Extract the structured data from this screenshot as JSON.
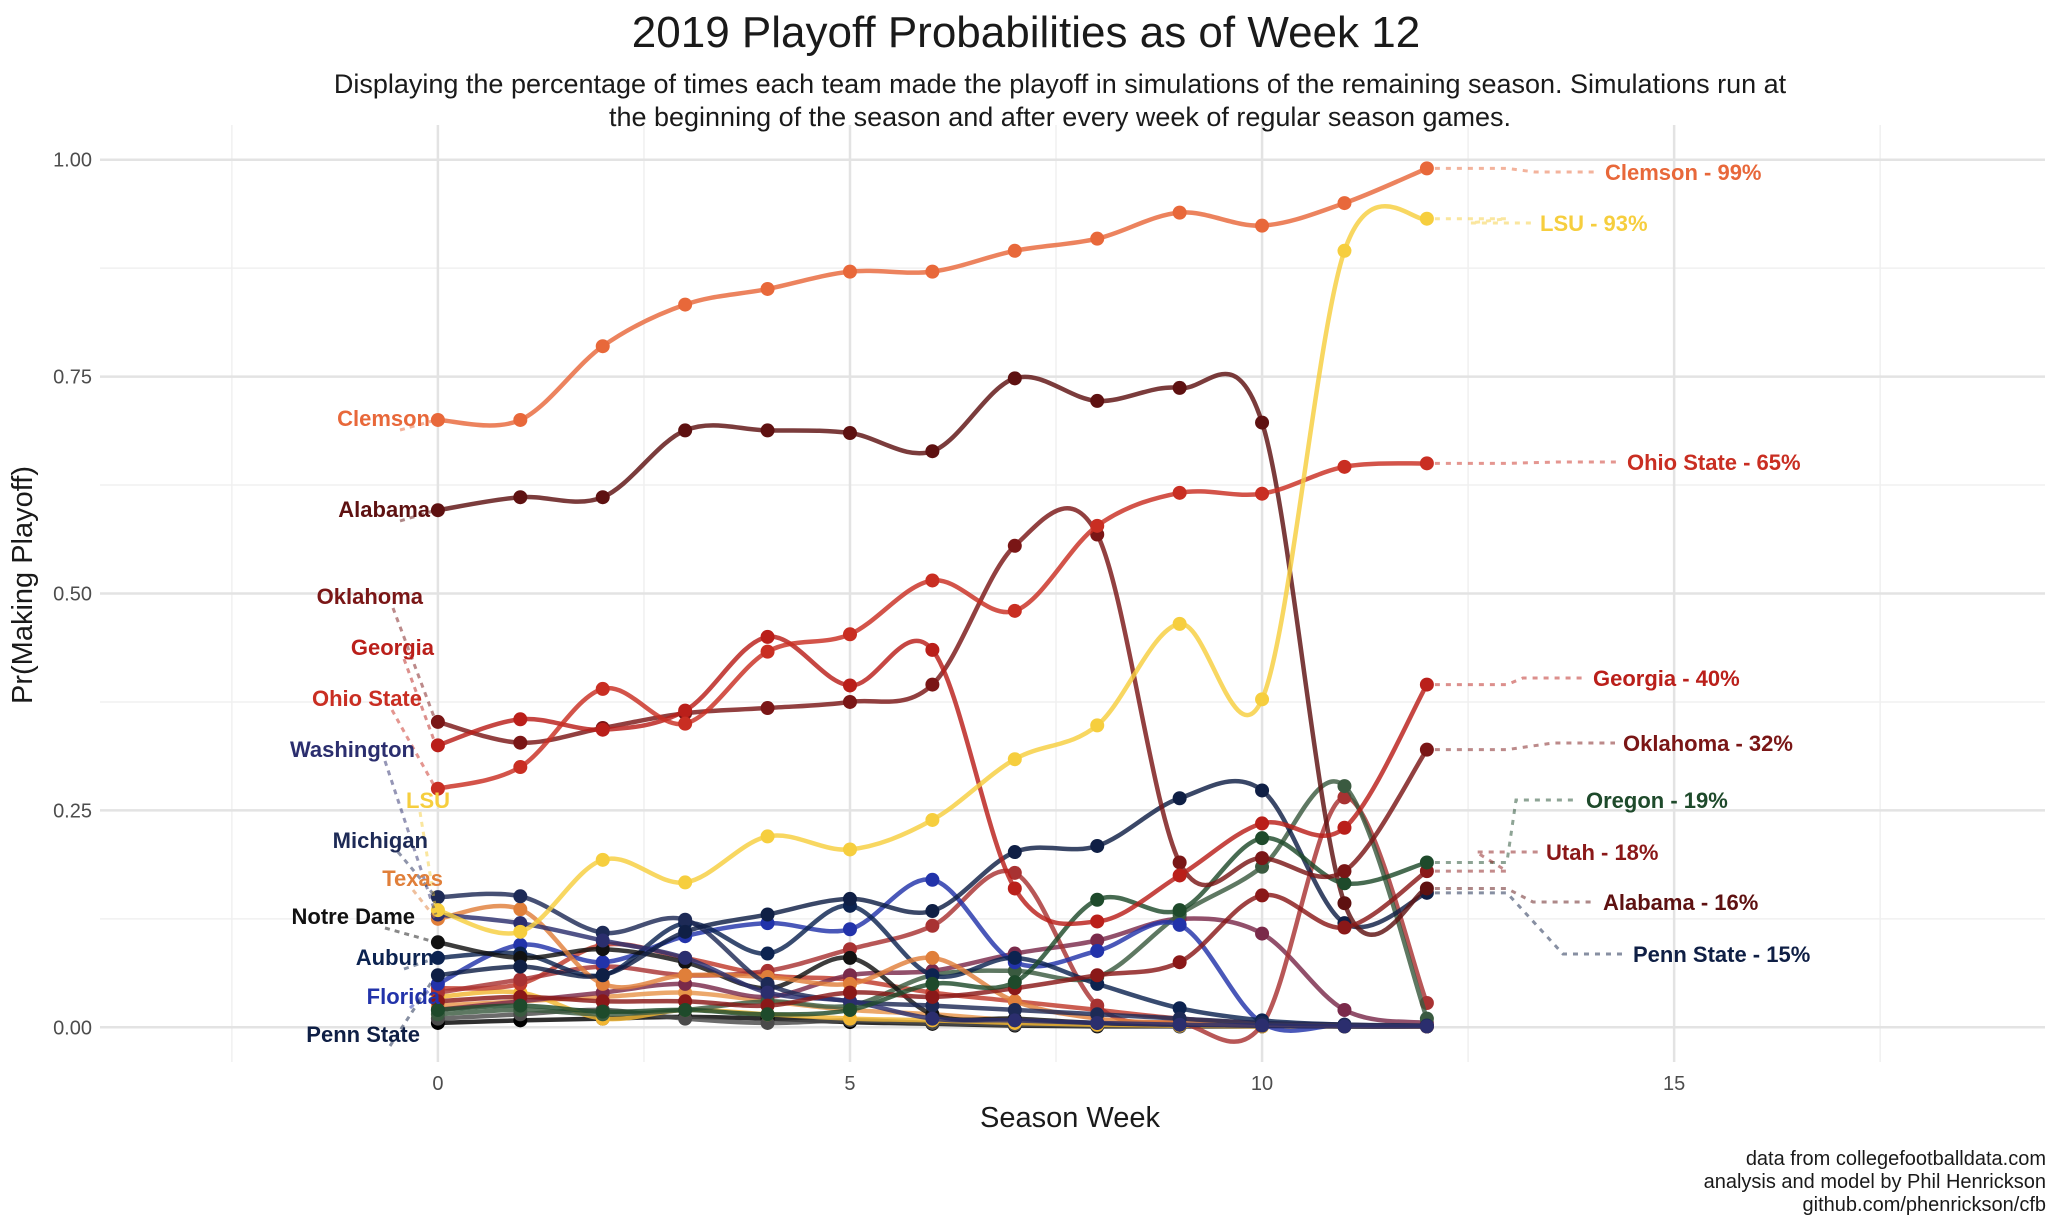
{
  "chart_data": {
    "type": "line",
    "title": "2019 Playoff Probabilities as of Week 12",
    "subtitle_lines": [
      "Displaying the percentage of times each team made the playoff in simulations of the remaining season. Simulations run at",
      "the beginning of the season and after every week of regular season games."
    ],
    "xlabel": "Season Week",
    "ylabel": "Pr(Making Playoff)",
    "xlim": [
      -4.1,
      19.5
    ],
    "ylim": [
      -0.04,
      1.04
    ],
    "x_ticks": [
      0,
      5,
      10,
      15
    ],
    "y_ticks": [
      0,
      0.25,
      0.5,
      0.75,
      1.0
    ],
    "x_tick_labels": [
      "0",
      "5",
      "10",
      "15"
    ],
    "y_tick_labels": [
      "0.00",
      "0.25",
      "0.50",
      "0.75",
      "1.00"
    ],
    "grid": true,
    "legend": "none",
    "x": [
      0,
      1,
      2,
      3,
      4,
      5,
      6,
      7,
      8,
      9,
      10,
      11,
      12
    ],
    "series": [
      {
        "name": "Clemson",
        "color": "#E8683A",
        "start_label": "Clemson",
        "end_label": "Clemson - 99%",
        "values": [
          0.7,
          0.7,
          0.785,
          0.833,
          0.851,
          0.871,
          0.871,
          0.895,
          0.909,
          0.939,
          0.924,
          0.95,
          0.99
        ]
      },
      {
        "name": "LSU",
        "color": "#F6CE3E",
        "start_label": "LSU",
        "end_label": "LSU - 93%",
        "values": [
          0.135,
          0.11,
          0.193,
          0.167,
          0.22,
          0.205,
          0.239,
          0.309,
          0.348,
          0.465,
          0.378,
          0.895,
          0.932
        ]
      },
      {
        "name": "Ohio State",
        "color": "#C92E22",
        "start_label": "Ohio State",
        "end_label": "Ohio State - 65%",
        "values": [
          0.275,
          0.3,
          0.39,
          0.35,
          0.433,
          0.453,
          0.515,
          0.48,
          0.578,
          0.616,
          0.615,
          0.646,
          0.65
        ]
      },
      {
        "name": "Georgia",
        "color": "#BA1F1A",
        "start_label": "Georgia",
        "end_label": "Georgia - 40%",
        "values": [
          0.325,
          0.355,
          0.343,
          0.365,
          0.45,
          0.394,
          0.435,
          0.16,
          0.122,
          0.175,
          0.235,
          0.23,
          0.395
        ]
      },
      {
        "name": "Oklahoma",
        "color": "#7A1616",
        "start_label": "Oklahoma",
        "end_label": "Oklahoma - 32%",
        "values": [
          0.352,
          0.328,
          0.345,
          0.362,
          0.368,
          0.375,
          0.395,
          0.555,
          0.568,
          0.19,
          0.195,
          0.18,
          0.32
        ]
      },
      {
        "name": "Oregon",
        "color": "#1E4A2B",
        "start_label": "",
        "end_label": "Oregon - 19%",
        "values": [
          0.02,
          0.025,
          0.018,
          0.02,
          0.015,
          0.02,
          0.05,
          0.052,
          0.147,
          0.135,
          0.218,
          0.166,
          0.19
        ]
      },
      {
        "name": "Utah",
        "color": "#8A1818",
        "start_label": "",
        "end_label": "Utah - 18%",
        "values": [
          0.03,
          0.035,
          0.03,
          0.03,
          0.025,
          0.04,
          0.035,
          0.045,
          0.06,
          0.075,
          0.152,
          0.115,
          0.18
        ]
      },
      {
        "name": "Alabama",
        "color": "#5E1111",
        "start_label": "Alabama",
        "end_label": "Alabama - 16%",
        "values": [
          0.596,
          0.611,
          0.611,
          0.688,
          0.688,
          0.685,
          0.664,
          0.748,
          0.722,
          0.737,
          0.697,
          0.143,
          0.16
        ]
      },
      {
        "name": "Penn State",
        "color": "#0F1F45",
        "start_label": "Penn State",
        "end_label": "Penn State - 15%",
        "values": [
          0.06,
          0.07,
          0.06,
          0.11,
          0.13,
          0.148,
          0.134,
          0.202,
          0.209,
          0.264,
          0.273,
          0.12,
          0.155
        ]
      },
      {
        "name": "Washington",
        "color": "#2B2E6E",
        "start_label": "Washington",
        "end_label": "",
        "values": [
          0.13,
          0.12,
          0.1,
          0.08,
          0.04,
          0.03,
          0.01,
          0.008,
          0.005,
          0.003,
          0.002,
          0.001,
          0.001
        ]
      },
      {
        "name": "Michigan",
        "color": "#1D2A56",
        "start_label": "Michigan",
        "end_label": "",
        "values": [
          0.15,
          0.151,
          0.109,
          0.124,
          0.05,
          0.03,
          0.025,
          0.02,
          0.015,
          0.01,
          0.005,
          0.003,
          0.002
        ]
      },
      {
        "name": "Texas",
        "color": "#E07F3A",
        "start_label": "Texas",
        "end_label": "",
        "values": [
          0.125,
          0.136,
          0.05,
          0.06,
          0.058,
          0.05,
          0.08,
          0.03,
          0.01,
          0.005,
          0.003,
          0.002,
          0.001
        ]
      },
      {
        "name": "Notre Dame",
        "color": "#111111",
        "start_label": "Notre Dame",
        "end_label": "",
        "values": [
          0.098,
          0.08,
          0.09,
          0.075,
          0.045,
          0.08,
          0.015,
          0.01,
          0.005,
          0.003,
          0.002,
          0.001,
          0.001
        ]
      },
      {
        "name": "Auburn",
        "color": "#0C2350",
        "start_label": "Auburn",
        "end_label": "",
        "values": [
          0.08,
          0.085,
          0.06,
          0.12,
          0.085,
          0.14,
          0.06,
          0.08,
          0.05,
          0.022,
          0.008,
          0.003,
          0.001
        ]
      },
      {
        "name": "Florida",
        "color": "#2233AA",
        "start_label": "Florida",
        "end_label": "",
        "values": [
          0.05,
          0.095,
          0.075,
          0.105,
          0.12,
          0.113,
          0.17,
          0.075,
          0.088,
          0.118,
          0.005,
          0.003,
          0.001
        ]
      },
      {
        "name": "",
        "color": "#3A5A40",
        "start_label": "",
        "end_label": "",
        "values": [
          0.015,
          0.02,
          0.015,
          0.02,
          0.03,
          0.025,
          0.06,
          0.065,
          0.058,
          0.13,
          0.185,
          0.278,
          0.01
        ]
      },
      {
        "name": "",
        "color": "#A83232",
        "start_label": "",
        "end_label": "",
        "values": [
          0.04,
          0.055,
          0.07,
          0.06,
          0.065,
          0.09,
          0.117,
          0.178,
          0.025,
          0.005,
          0.003,
          0.265,
          0.028
        ]
      },
      {
        "name": "",
        "color": "#7A2A4A",
        "start_label": "",
        "end_label": "",
        "values": [
          0.02,
          0.03,
          0.04,
          0.05,
          0.035,
          0.06,
          0.065,
          0.085,
          0.1,
          0.125,
          0.108,
          0.02,
          0.005
        ]
      },
      {
        "name": "",
        "color": "#C0392B",
        "start_label": "",
        "end_label": "",
        "values": [
          0.045,
          0.05,
          0.095,
          0.08,
          0.06,
          0.055,
          0.04,
          0.03,
          0.02,
          0.01,
          0.005,
          0.003,
          0.001
        ]
      },
      {
        "name": "",
        "color": "#F2B632",
        "start_label": "",
        "end_label": "",
        "values": [
          0.035,
          0.04,
          0.01,
          0.02,
          0.015,
          0.01,
          0.008,
          0.005,
          0.003,
          0.002,
          0.001,
          0.001,
          0.001
        ]
      },
      {
        "name": "",
        "color": "#4A4A4A",
        "start_label": "",
        "end_label": "",
        "values": [
          0.01,
          0.015,
          0.02,
          0.01,
          0.005,
          0.008,
          0.005,
          0.003,
          0.002,
          0.001,
          0.001,
          0.001,
          0.001
        ]
      },
      {
        "name": "",
        "color": "#E8954A",
        "start_label": "",
        "end_label": "",
        "values": [
          0.025,
          0.03,
          0.035,
          0.04,
          0.03,
          0.02,
          0.015,
          0.008,
          0.005,
          0.003,
          0.002,
          0.001,
          0.001
        ]
      },
      {
        "name": "",
        "color": "#000000",
        "start_label": "",
        "end_label": "",
        "values": [
          0.005,
          0.008,
          0.01,
          0.012,
          0.01,
          0.006,
          0.004,
          0.002,
          0.001,
          0.001,
          0.001,
          0.001,
          0.001
        ]
      }
    ],
    "start_labels": [
      {
        "text": "Clemson",
        "color": "#E8683A"
      },
      {
        "text": "Alabama",
        "color": "#5E1111"
      },
      {
        "text": "Oklahoma",
        "color": "#7A1616"
      },
      {
        "text": "Georgia",
        "color": "#BA1F1A"
      },
      {
        "text": "Ohio State",
        "color": "#C92E22"
      },
      {
        "text": "Washington",
        "color": "#2B2E6E"
      },
      {
        "text": "LSU",
        "color": "#F6CE3E"
      },
      {
        "text": "Michigan",
        "color": "#1D2A56"
      },
      {
        "text": "Texas",
        "color": "#E07F3A"
      },
      {
        "text": "Notre Dame",
        "color": "#111111"
      },
      {
        "text": "Auburn",
        "color": "#0C2350"
      },
      {
        "text": "Florida",
        "color": "#2233AA"
      },
      {
        "text": "Penn State",
        "color": "#0F1F45"
      }
    ],
    "end_labels": [
      {
        "text": "Clemson - 99%",
        "color": "#E8683A"
      },
      {
        "text": "LSU - 93%",
        "color": "#F6CE3E"
      },
      {
        "text": "Ohio State - 65%",
        "color": "#C92E22"
      },
      {
        "text": "Georgia - 40%",
        "color": "#BA1F1A"
      },
      {
        "text": "Oklahoma - 32%",
        "color": "#7A1616"
      },
      {
        "text": "Oregon - 19%",
        "color": "#1E4A2B"
      },
      {
        "text": "Utah - 18%",
        "color": "#8A1818"
      },
      {
        "text": "Alabama - 16%",
        "color": "#5E1111"
      },
      {
        "text": "Penn State - 15%",
        "color": "#0F1F45"
      }
    ]
  },
  "caption": {
    "lines": [
      "data from collegefootballdata.com",
      "analysis and model by Phil Henrickson",
      "github.com/phenrickson/cfb"
    ]
  }
}
